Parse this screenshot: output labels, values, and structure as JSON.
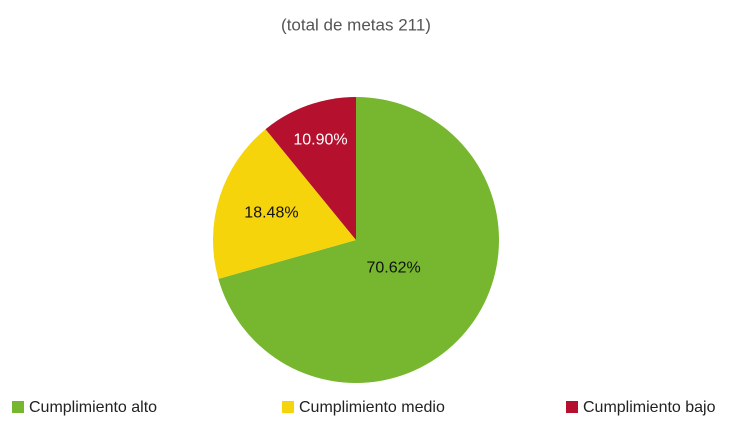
{
  "chart_data": {
    "type": "pie",
    "title": "(total de metas 211)",
    "categories": [
      "Cumplimiento alto",
      "Cumplimiento medio",
      "Cumplimiento bajo"
    ],
    "values": [
      70.62,
      18.48,
      10.9
    ],
    "value_labels": [
      "70.62%",
      "18.48%",
      "10.90%"
    ],
    "colors": [
      "#76b72f",
      "#f6d40c",
      "#b5112f"
    ],
    "legend": "bottom"
  }
}
